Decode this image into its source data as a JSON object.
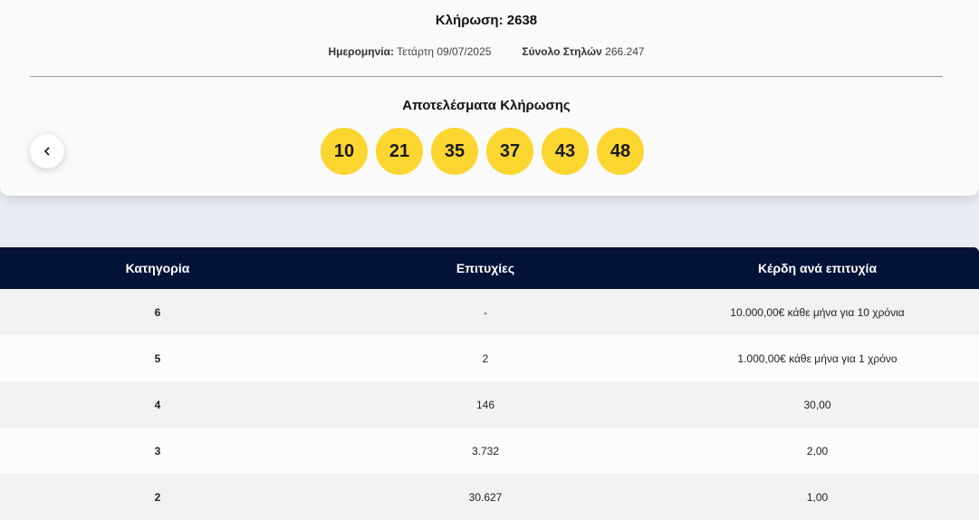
{
  "draw": {
    "title": "Κλήρωση: 2638",
    "date_label": "Ημερομηνία:",
    "date_value": "Τετάρτη 09/07/2025",
    "columns_label": "Σύνολο Στηλών",
    "columns_value": "266.247",
    "results_title": "Αποτελέσματα Κλήρωσης",
    "numbers": [
      "10",
      "21",
      "35",
      "37",
      "43",
      "48"
    ],
    "ball_color": "#fbd530"
  },
  "nav": {
    "prev_icon": "chevron-left-icon"
  },
  "table": {
    "header_color": "#021238",
    "headers": [
      "Κατηγορία",
      "Επιτυχίες",
      "Κέρδη ανά επιτυχία"
    ],
    "rows": [
      {
        "category": "6",
        "winners": "-",
        "prize": "10.000,00€ κάθε μήνα για 10 χρόνια"
      },
      {
        "category": "5",
        "winners": "2",
        "prize": "1.000,00€ κάθε μήνα για 1 χρόνο"
      },
      {
        "category": "4",
        "winners": "146",
        "prize": "30,00"
      },
      {
        "category": "3",
        "winners": "3.732",
        "prize": "2,00"
      },
      {
        "category": "2",
        "winners": "30.627",
        "prize": "1,00"
      }
    ]
  }
}
